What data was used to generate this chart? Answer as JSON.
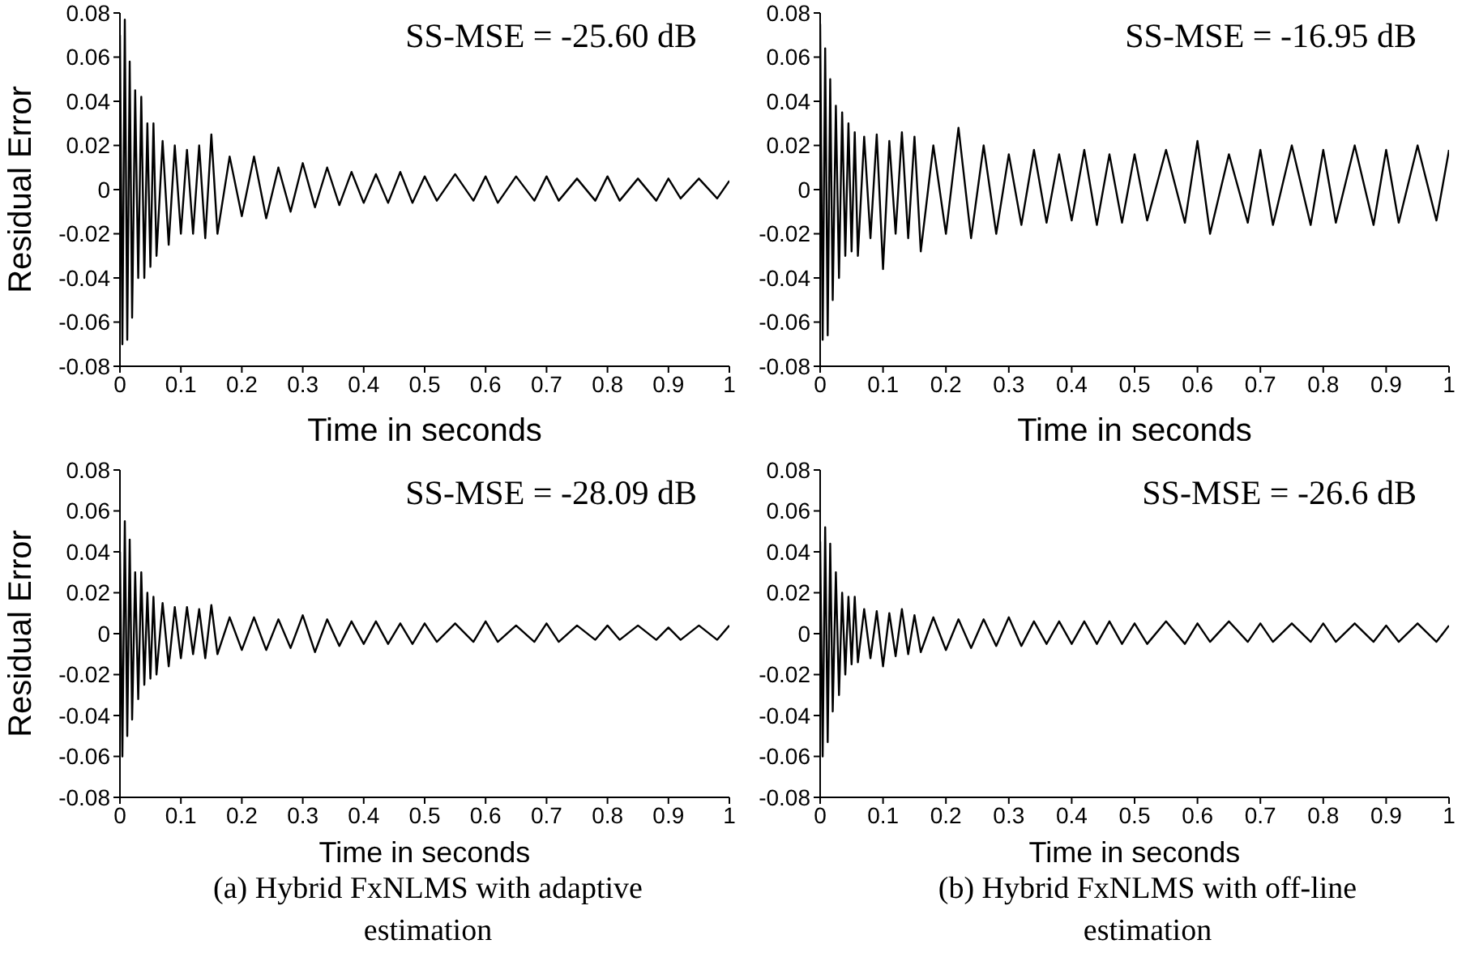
{
  "chart_data": [
    {
      "type": "line",
      "ylabel": "Residual Error",
      "xlabel": "Time in seconds",
      "annotations": [
        "SS-MSE = -25.60 dB"
      ],
      "xlim": [
        0,
        1
      ],
      "ylim": [
        -0.08,
        0.08
      ],
      "xticks": [
        0,
        0.1,
        0.2,
        0.3,
        0.4,
        0.5,
        0.6,
        0.7,
        0.8,
        0.9,
        1
      ],
      "yticks": [
        -0.08,
        -0.06,
        -0.04,
        -0.02,
        0,
        0.02,
        0.04,
        0.06,
        0.08
      ],
      "grid": false,
      "legend": false,
      "marker": "none",
      "line_style": "solid",
      "series": [
        {
          "color": "#000000",
          "x": [
            0,
            0.004,
            0.008,
            0.012,
            0.016,
            0.02,
            0.025,
            0.03,
            0.035,
            0.04,
            0.045,
            0.05,
            0.055,
            0.06,
            0.07,
            0.08,
            0.09,
            0.1,
            0.11,
            0.12,
            0.13,
            0.14,
            0.15,
            0.16,
            0.18,
            0.2,
            0.22,
            0.24,
            0.26,
            0.28,
            0.3,
            0.32,
            0.34,
            0.36,
            0.38,
            0.4,
            0.42,
            0.44,
            0.46,
            0.48,
            0.5,
            0.52,
            0.55,
            0.58,
            0.6,
            0.62,
            0.65,
            0.68,
            0.7,
            0.72,
            0.75,
            0.78,
            0.8,
            0.82,
            0.85,
            0.88,
            0.9,
            0.92,
            0.95,
            0.98,
            1
          ],
          "values": [
            0.07,
            -0.07,
            0.077,
            -0.068,
            0.058,
            -0.058,
            0.045,
            -0.04,
            0.042,
            -0.04,
            0.03,
            -0.035,
            0.03,
            -0.03,
            0.022,
            -0.025,
            0.02,
            -0.02,
            0.018,
            -0.02,
            0.02,
            -0.022,
            0.025,
            -0.02,
            0.015,
            -0.012,
            0.015,
            -0.013,
            0.01,
            -0.01,
            0.012,
            -0.008,
            0.01,
            -0.007,
            0.008,
            -0.006,
            0.007,
            -0.006,
            0.008,
            -0.006,
            0.006,
            -0.005,
            0.007,
            -0.005,
            0.006,
            -0.006,
            0.006,
            -0.005,
            0.006,
            -0.005,
            0.005,
            -0.005,
            0.006,
            -0.005,
            0.005,
            -0.005,
            0.005,
            -0.004,
            0.005,
            -0.004,
            0.004
          ]
        }
      ]
    },
    {
      "type": "line",
      "xlabel": "Time in seconds",
      "annotations": [
        "SS-MSE = -16.95 dB"
      ],
      "xlim": [
        0,
        1
      ],
      "ylim": [
        -0.08,
        0.08
      ],
      "xticks": [
        0,
        0.1,
        0.2,
        0.3,
        0.4,
        0.5,
        0.6,
        0.7,
        0.8,
        0.9,
        1
      ],
      "yticks": [
        -0.08,
        -0.06,
        -0.04,
        -0.02,
        0,
        0.02,
        0.04,
        0.06,
        0.08
      ],
      "grid": false,
      "legend": false,
      "marker": "none",
      "line_style": "solid",
      "series": [
        {
          "color": "#000000",
          "x": [
            0,
            0.004,
            0.008,
            0.012,
            0.016,
            0.02,
            0.025,
            0.03,
            0.035,
            0.04,
            0.045,
            0.05,
            0.055,
            0.06,
            0.07,
            0.08,
            0.09,
            0.1,
            0.11,
            0.12,
            0.13,
            0.14,
            0.15,
            0.16,
            0.18,
            0.2,
            0.22,
            0.24,
            0.26,
            0.28,
            0.3,
            0.32,
            0.34,
            0.36,
            0.38,
            0.4,
            0.42,
            0.44,
            0.46,
            0.48,
            0.5,
            0.52,
            0.55,
            0.58,
            0.6,
            0.62,
            0.65,
            0.68,
            0.7,
            0.72,
            0.75,
            0.78,
            0.8,
            0.82,
            0.85,
            0.88,
            0.9,
            0.92,
            0.95,
            0.98,
            1
          ],
          "values": [
            0.075,
            -0.068,
            0.064,
            -0.066,
            0.05,
            -0.05,
            0.038,
            -0.04,
            0.035,
            -0.03,
            0.03,
            -0.028,
            0.026,
            -0.03,
            0.024,
            -0.022,
            0.025,
            -0.036,
            0.022,
            -0.02,
            0.026,
            -0.022,
            0.024,
            -0.028,
            0.02,
            -0.02,
            0.028,
            -0.022,
            0.02,
            -0.02,
            0.016,
            -0.016,
            0.018,
            -0.015,
            0.016,
            -0.014,
            0.018,
            -0.016,
            0.016,
            -0.015,
            0.016,
            -0.014,
            0.018,
            -0.015,
            0.022,
            -0.02,
            0.016,
            -0.015,
            0.018,
            -0.016,
            0.02,
            -0.016,
            0.018,
            -0.015,
            0.02,
            -0.016,
            0.018,
            -0.015,
            0.02,
            -0.014,
            0.018
          ]
        }
      ]
    },
    {
      "type": "line",
      "ylabel": "Residual Error",
      "xlabel": "Time in seconds",
      "annotations": [
        "SS-MSE = -28.09 dB",
        "(a) Hybrid FxNLMS with adaptive estimation"
      ],
      "xlim": [
        0,
        1
      ],
      "ylim": [
        -0.08,
        0.08
      ],
      "xticks": [
        0,
        0.1,
        0.2,
        0.3,
        0.4,
        0.5,
        0.6,
        0.7,
        0.8,
        0.9,
        1
      ],
      "yticks": [
        -0.08,
        -0.06,
        -0.04,
        -0.02,
        0,
        0.02,
        0.04,
        0.06,
        0.08
      ],
      "grid": false,
      "legend": false,
      "marker": "none",
      "line_style": "solid",
      "series": [
        {
          "color": "#000000",
          "x": [
            0,
            0.004,
            0.008,
            0.012,
            0.016,
            0.02,
            0.025,
            0.03,
            0.035,
            0.04,
            0.045,
            0.05,
            0.055,
            0.06,
            0.07,
            0.08,
            0.09,
            0.1,
            0.11,
            0.12,
            0.13,
            0.14,
            0.15,
            0.16,
            0.18,
            0.2,
            0.22,
            0.24,
            0.26,
            0.28,
            0.3,
            0.32,
            0.34,
            0.36,
            0.38,
            0.4,
            0.42,
            0.44,
            0.46,
            0.48,
            0.5,
            0.52,
            0.55,
            0.58,
            0.6,
            0.62,
            0.65,
            0.68,
            0.7,
            0.72,
            0.75,
            0.78,
            0.8,
            0.82,
            0.85,
            0.88,
            0.9,
            0.92,
            0.95,
            0.98,
            1
          ],
          "values": [
            0.04,
            -0.06,
            0.055,
            -0.05,
            0.046,
            -0.042,
            0.03,
            -0.032,
            0.03,
            -0.025,
            0.02,
            -0.022,
            0.018,
            -0.02,
            0.015,
            -0.016,
            0.013,
            -0.012,
            0.013,
            -0.01,
            0.012,
            -0.012,
            0.014,
            -0.01,
            0.008,
            -0.008,
            0.008,
            -0.008,
            0.007,
            -0.007,
            0.009,
            -0.009,
            0.007,
            -0.006,
            0.006,
            -0.005,
            0.006,
            -0.005,
            0.005,
            -0.005,
            0.005,
            -0.004,
            0.005,
            -0.004,
            0.006,
            -0.004,
            0.004,
            -0.004,
            0.005,
            -0.004,
            0.004,
            -0.003,
            0.004,
            -0.003,
            0.004,
            -0.003,
            0.003,
            -0.003,
            0.004,
            -0.003,
            0.004
          ]
        }
      ]
    },
    {
      "type": "line",
      "xlabel": "Time in seconds",
      "annotations": [
        "SS-MSE = -26.6 dB",
        "(b) Hybrid FxNLMS with off-line estimation"
      ],
      "xlim": [
        0,
        1
      ],
      "ylim": [
        -0.08,
        0.08
      ],
      "xticks": [
        0,
        0.1,
        0.2,
        0.3,
        0.4,
        0.5,
        0.6,
        0.7,
        0.8,
        0.9,
        1
      ],
      "yticks": [
        -0.08,
        -0.06,
        -0.04,
        -0.02,
        0,
        0.02,
        0.04,
        0.06,
        0.08
      ],
      "grid": false,
      "legend": false,
      "marker": "none",
      "line_style": "solid",
      "series": [
        {
          "color": "#000000",
          "x": [
            0,
            0.004,
            0.008,
            0.012,
            0.016,
            0.02,
            0.025,
            0.03,
            0.035,
            0.04,
            0.045,
            0.05,
            0.055,
            0.06,
            0.07,
            0.08,
            0.09,
            0.1,
            0.11,
            0.12,
            0.13,
            0.14,
            0.15,
            0.16,
            0.18,
            0.2,
            0.22,
            0.24,
            0.26,
            0.28,
            0.3,
            0.32,
            0.34,
            0.36,
            0.38,
            0.4,
            0.42,
            0.44,
            0.46,
            0.48,
            0.5,
            0.52,
            0.55,
            0.58,
            0.6,
            0.62,
            0.65,
            0.68,
            0.7,
            0.72,
            0.75,
            0.78,
            0.8,
            0.82,
            0.85,
            0.88,
            0.9,
            0.92,
            0.95,
            0.98,
            1
          ],
          "values": [
            0.045,
            -0.06,
            0.052,
            -0.053,
            0.044,
            -0.038,
            0.03,
            -0.03,
            0.02,
            -0.02,
            0.018,
            -0.015,
            0.018,
            -0.014,
            0.012,
            -0.012,
            0.011,
            -0.016,
            0.01,
            -0.011,
            0.012,
            -0.01,
            0.009,
            -0.009,
            0.008,
            -0.008,
            0.007,
            -0.007,
            0.007,
            -0.006,
            0.008,
            -0.006,
            0.006,
            -0.005,
            0.006,
            -0.005,
            0.006,
            -0.005,
            0.006,
            -0.005,
            0.005,
            -0.005,
            0.006,
            -0.005,
            0.005,
            -0.004,
            0.006,
            -0.004,
            0.005,
            -0.004,
            0.005,
            -0.004,
            0.005,
            -0.004,
            0.005,
            -0.004,
            0.004,
            -0.004,
            0.005,
            -0.004,
            0.004
          ]
        }
      ]
    }
  ]
}
